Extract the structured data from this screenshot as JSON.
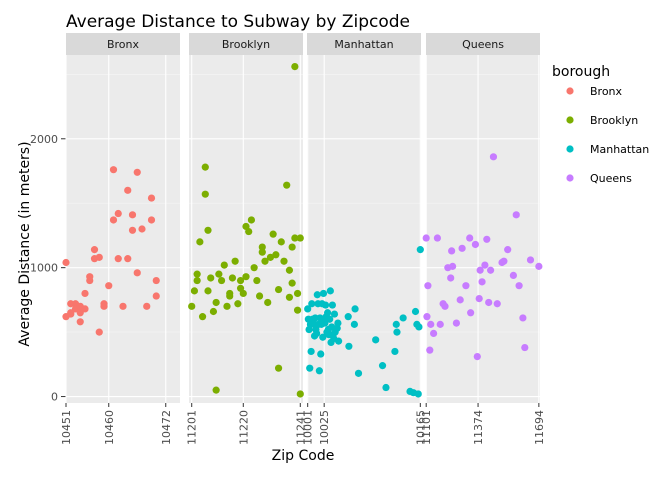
{
  "chart_data": {
    "type": "scatter",
    "title": "Average Distance to Subway by Zipcode",
    "xlabel": "Zip Code",
    "ylabel": "Average Distance (in meters)",
    "ylim": [
      -50,
      2650
    ],
    "yticks": [
      0,
      1000,
      2000
    ],
    "grid": true,
    "legend": {
      "title": "borough",
      "position": "right"
    },
    "panels": [
      {
        "name": "Bronx",
        "color": "#F8766D",
        "xlim": [
          10451,
          10475
        ],
        "xticks": [
          "10451",
          "10460",
          "10472"
        ],
        "points": [
          [
            10451,
            1040
          ],
          [
            10451,
            620
          ],
          [
            10452,
            640
          ],
          [
            10452,
            720
          ],
          [
            10452,
            650
          ],
          [
            10453,
            720
          ],
          [
            10453,
            680
          ],
          [
            10454,
            650
          ],
          [
            10454,
            700
          ],
          [
            10454,
            580
          ],
          [
            10455,
            800
          ],
          [
            10455,
            680
          ],
          [
            10456,
            930
          ],
          [
            10456,
            900
          ],
          [
            10457,
            1070
          ],
          [
            10457,
            1140
          ],
          [
            10458,
            1080
          ],
          [
            10458,
            500
          ],
          [
            10459,
            700
          ],
          [
            10459,
            720
          ],
          [
            10460,
            860
          ],
          [
            10461,
            1760
          ],
          [
            10461,
            1370
          ],
          [
            10462,
            1070
          ],
          [
            10462,
            1420
          ],
          [
            10463,
            700
          ],
          [
            10464,
            1600
          ],
          [
            10464,
            1070
          ],
          [
            10465,
            1410
          ],
          [
            10465,
            1290
          ],
          [
            10466,
            1740
          ],
          [
            10466,
            960
          ],
          [
            10467,
            1300
          ],
          [
            10468,
            700
          ],
          [
            10469,
            1540
          ],
          [
            10469,
            1370
          ],
          [
            10470,
            780
          ],
          [
            10470,
            900
          ]
        ]
      },
      {
        "name": "Brooklyn",
        "color": "#7CAE00",
        "xlim": [
          11200,
          11242
        ],
        "xticks": [
          "11201",
          "11220",
          "11241"
        ],
        "points": [
          [
            11201,
            700
          ],
          [
            11202,
            820
          ],
          [
            11203,
            900
          ],
          [
            11203,
            950
          ],
          [
            11204,
            1200
          ],
          [
            11205,
            620
          ],
          [
            11206,
            1780
          ],
          [
            11206,
            1570
          ],
          [
            11207,
            1290
          ],
          [
            11207,
            820
          ],
          [
            11208,
            920
          ],
          [
            11209,
            660
          ],
          [
            11210,
            50
          ],
          [
            11210,
            730
          ],
          [
            11211,
            950
          ],
          [
            11212,
            900
          ],
          [
            11213,
            1020
          ],
          [
            11214,
            700
          ],
          [
            11215,
            800
          ],
          [
            11215,
            780
          ],
          [
            11216,
            920
          ],
          [
            11217,
            1050
          ],
          [
            11218,
            720
          ],
          [
            11219,
            900
          ],
          [
            11219,
            840
          ],
          [
            11220,
            800
          ],
          [
            11221,
            1320
          ],
          [
            11221,
            930
          ],
          [
            11222,
            1280
          ],
          [
            11223,
            1370
          ],
          [
            11224,
            1000
          ],
          [
            11225,
            900
          ],
          [
            11226,
            780
          ],
          [
            11227,
            1160
          ],
          [
            11227,
            1120
          ],
          [
            11228,
            1050
          ],
          [
            11229,
            730
          ],
          [
            11230,
            1080
          ],
          [
            11231,
            1260
          ],
          [
            11232,
            1100
          ],
          [
            11233,
            220
          ],
          [
            11233,
            830
          ],
          [
            11234,
            1200
          ],
          [
            11235,
            1050
          ],
          [
            11236,
            1640
          ],
          [
            11237,
            980
          ],
          [
            11237,
            770
          ],
          [
            11238,
            880
          ],
          [
            11238,
            1160
          ],
          [
            11239,
            1230
          ],
          [
            11239,
            2560
          ],
          [
            11240,
            800
          ],
          [
            11240,
            670
          ],
          [
            11241,
            1230
          ],
          [
            11241,
            20
          ]
        ]
      },
      {
        "name": "Manhattan",
        "color": "#00BFC4",
        "xlim": [
          10000,
          10166
        ],
        "xticks": [
          "10001",
          "10025",
          "10165"
        ],
        "points": [
          [
            10001,
            680
          ],
          [
            10002,
            600
          ],
          [
            10003,
            520
          ],
          [
            10004,
            220
          ],
          [
            10005,
            560
          ],
          [
            10006,
            350
          ],
          [
            10007,
            720
          ],
          [
            10008,
            600
          ],
          [
            10009,
            580
          ],
          [
            10010,
            560
          ],
          [
            10011,
            470
          ],
          [
            10012,
            610
          ],
          [
            10013,
            520
          ],
          [
            10014,
            490
          ],
          [
            10015,
            790
          ],
          [
            10016,
            720
          ],
          [
            10017,
            560
          ],
          [
            10018,
            200
          ],
          [
            10019,
            610
          ],
          [
            10020,
            330
          ],
          [
            10021,
            560
          ],
          [
            10022,
            720
          ],
          [
            10023,
            460
          ],
          [
            10024,
            800
          ],
          [
            10025,
            600
          ],
          [
            10026,
            570
          ],
          [
            10027,
            710
          ],
          [
            10028,
            620
          ],
          [
            10029,
            500
          ],
          [
            10030,
            650
          ],
          [
            10031,
            520
          ],
          [
            10032,
            480
          ],
          [
            10033,
            600
          ],
          [
            10034,
            820
          ],
          [
            10035,
            420
          ],
          [
            10036,
            540
          ],
          [
            10037,
            710
          ],
          [
            10038,
            480
          ],
          [
            10039,
            450
          ],
          [
            10040,
            640
          ],
          [
            10041,
            500
          ],
          [
            10044,
            530
          ],
          [
            10045,
            570
          ],
          [
            10046,
            430
          ],
          [
            10060,
            620
          ],
          [
            10061,
            390
          ],
          [
            10069,
            560
          ],
          [
            10070,
            680
          ],
          [
            10075,
            180
          ],
          [
            10100,
            440
          ],
          [
            10110,
            240
          ],
          [
            10115,
            70
          ],
          [
            10128,
            350
          ],
          [
            10130,
            560
          ],
          [
            10131,
            500
          ],
          [
            10140,
            610
          ],
          [
            10150,
            40
          ],
          [
            10155,
            30
          ],
          [
            10158,
            660
          ],
          [
            10160,
            560
          ],
          [
            10162,
            20
          ],
          [
            10163,
            540
          ],
          [
            10165,
            1140
          ]
        ]
      },
      {
        "name": "Queens",
        "color": "#C77CFF",
        "xlim": [
          11100,
          11700
        ],
        "xticks": [
          "11101",
          "11374",
          "11694"
        ],
        "points": [
          [
            11101,
            1230
          ],
          [
            11105,
            620
          ],
          [
            11110,
            860
          ],
          [
            11120,
            360
          ],
          [
            11125,
            560
          ],
          [
            11140,
            490
          ],
          [
            11160,
            1230
          ],
          [
            11175,
            560
          ],
          [
            11190,
            720
          ],
          [
            11200,
            700
          ],
          [
            11215,
            1000
          ],
          [
            11230,
            920
          ],
          [
            11235,
            1130
          ],
          [
            11240,
            1010
          ],
          [
            11260,
            570
          ],
          [
            11280,
            750
          ],
          [
            11290,
            1150
          ],
          [
            11310,
            860
          ],
          [
            11330,
            1230
          ],
          [
            11335,
            650
          ],
          [
            11360,
            1180
          ],
          [
            11370,
            310
          ],
          [
            11380,
            760
          ],
          [
            11385,
            980
          ],
          [
            11395,
            890
          ],
          [
            11410,
            1020
          ],
          [
            11420,
            1220
          ],
          [
            11430,
            730
          ],
          [
            11440,
            980
          ],
          [
            11455,
            1860
          ],
          [
            11475,
            720
          ],
          [
            11500,
            1040
          ],
          [
            11510,
            1050
          ],
          [
            11530,
            1140
          ],
          [
            11560,
            940
          ],
          [
            11575,
            1410
          ],
          [
            11590,
            860
          ],
          [
            11610,
            610
          ],
          [
            11620,
            380
          ],
          [
            11650,
            1060
          ],
          [
            11694,
            1010
          ]
        ]
      }
    ]
  }
}
